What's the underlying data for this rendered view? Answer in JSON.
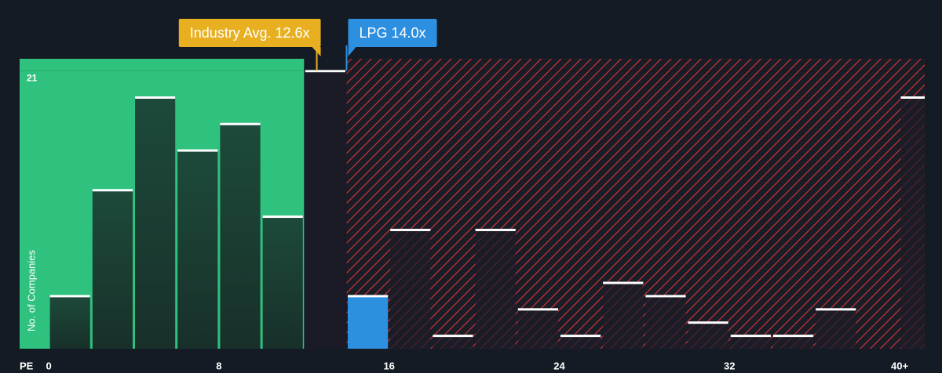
{
  "chart_data": {
    "type": "histogram",
    "x_label": "PE",
    "y_label": "No. of Companies",
    "bins": [
      0,
      2,
      4,
      6,
      8,
      10,
      12,
      14,
      16,
      18,
      20,
      22,
      24,
      26,
      28,
      30,
      32,
      34,
      36,
      38,
      40,
      42
    ],
    "values": [
      4,
      12,
      19,
      15,
      17,
      10,
      21,
      4,
      9,
      1,
      9,
      3,
      1,
      5,
      4,
      2,
      1,
      1,
      3,
      0,
      19
    ],
    "xlim": [
      -1.37,
      41.18
    ],
    "ylim": [
      0,
      21.9
    ],
    "xticks": [
      0,
      8,
      16,
      24,
      32,
      {
        "value": 40,
        "label": "40+"
      }
    ],
    "yticks": [
      21
    ],
    "industry_avg": {
      "label": "Industry Avg. 12.6x",
      "value": 12.6,
      "color": "#e8b020"
    },
    "company": {
      "label": "LPG 14.0x",
      "value": 14.0,
      "color": "#2d8fe0"
    },
    "below_color": "#2ec27e",
    "above_color": "#d9343c"
  }
}
